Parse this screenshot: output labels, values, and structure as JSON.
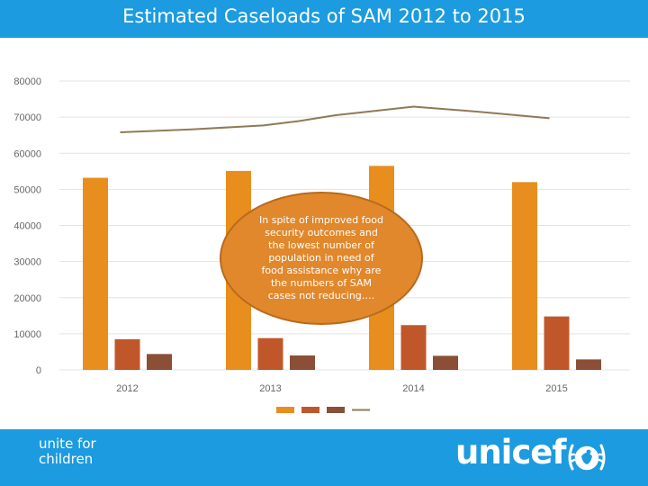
{
  "header": {
    "title": "Estimated Caseloads of SAM 2012 to 2015"
  },
  "callout": {
    "lines": [
      "In spite of improved food",
      "security outcomes and",
      "the lowest number of",
      "population  in need of",
      "food assistance why are",
      "the numbers of SAM",
      "cases not reducing…."
    ]
  },
  "footer": {
    "tagline_line1": "unite for",
    "tagline_line2": "children",
    "brand": "unicef",
    "emblem_icon": "unicef-emblem-icon"
  },
  "colors": {
    "header_bg": "#1c9be0",
    "footer_bg": "#1c9be0"
  },
  "chart_data": {
    "type": "bar",
    "categories": [
      "2012",
      "2013",
      "2014",
      "2015"
    ],
    "series": [
      {
        "values": [
          53200,
          55100,
          56500,
          52000
        ],
        "color": "#e88e1e",
        "kind": "bar"
      },
      {
        "values": [
          8500,
          8800,
          12400,
          14800
        ],
        "color": "#c0572a",
        "kind": "bar"
      },
      {
        "values": [
          4400,
          4000,
          3900,
          2900
        ],
        "color": "#8a4f36",
        "kind": "bar"
      },
      {
        "x": [
          2011.95,
          2012.45,
          2012.95,
          2013.2,
          2013.45,
          2013.75,
          2014.0,
          2014.45,
          2014.95
        ],
        "values": [
          65800,
          66600,
          67700,
          68900,
          70500,
          71800,
          72900,
          71500,
          69700
        ],
        "color": "#8f7a54",
        "kind": "line"
      }
    ],
    "title": "Estimated Caseloads of SAM 2012 to 2015",
    "xlabel": "",
    "ylabel": "",
    "ylim": [
      0,
      80000
    ],
    "yticks": [
      0,
      10000,
      20000,
      30000,
      40000,
      50000,
      60000,
      70000,
      80000
    ],
    "grid": true,
    "legend": "bottom"
  }
}
